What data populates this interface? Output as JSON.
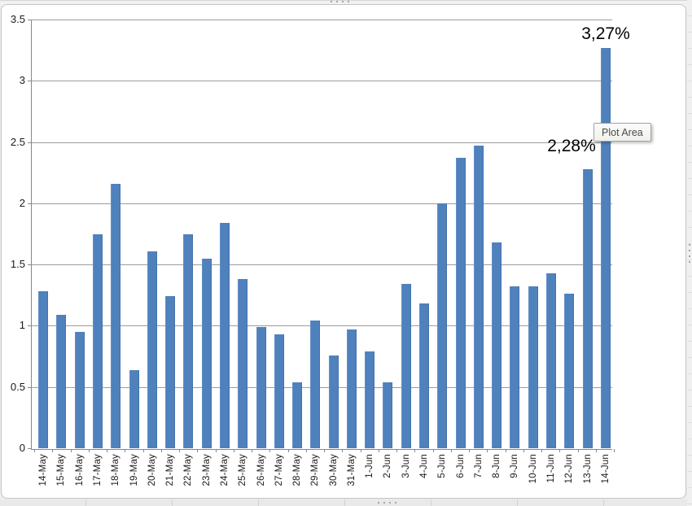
{
  "tooltip": {
    "text": "Plot Area"
  },
  "chart_data": {
    "type": "bar",
    "title": "",
    "xlabel": "",
    "ylabel": "",
    "categories": [
      "14-May",
      "15-May",
      "16-May",
      "17-May",
      "18-May",
      "19-May",
      "20-May",
      "21-May",
      "22-May",
      "23-May",
      "24-May",
      "25-May",
      "26-May",
      "27-May",
      "28-May",
      "29-May",
      "30-May",
      "31-May",
      "1-Jun",
      "2-Jun",
      "3-Jun",
      "4-Jun",
      "5-Jun",
      "6-Jun",
      "7-Jun",
      "8-Jun",
      "9-Jun",
      "10-Jun",
      "11-Jun",
      "12-Jun",
      "13-Jun",
      "14-Jun"
    ],
    "values": [
      1.28,
      1.09,
      0.95,
      1.75,
      2.16,
      0.64,
      1.61,
      1.24,
      1.75,
      1.55,
      1.84,
      1.38,
      0.99,
      0.93,
      0.54,
      1.04,
      0.76,
      0.97,
      0.79,
      0.54,
      1.34,
      1.18,
      2.0,
      2.37,
      2.47,
      1.68,
      1.32,
      1.32,
      1.43,
      1.26,
      2.28,
      3.27
    ],
    "ylim": [
      0,
      3.5
    ],
    "ytick_step": 0.5,
    "y_tick_labels": [
      "0",
      "0.5",
      "1",
      "1.5",
      "2",
      "2.5",
      "3",
      "3.5"
    ],
    "grid": true,
    "legend": "none",
    "bar_color": "#4F81BD",
    "gridline_color": "#9C9C9C",
    "data_labels": [
      {
        "text": "2,28%",
        "category": "13-Jun"
      },
      {
        "text": "3,27%",
        "category": "14-Jun"
      }
    ]
  }
}
